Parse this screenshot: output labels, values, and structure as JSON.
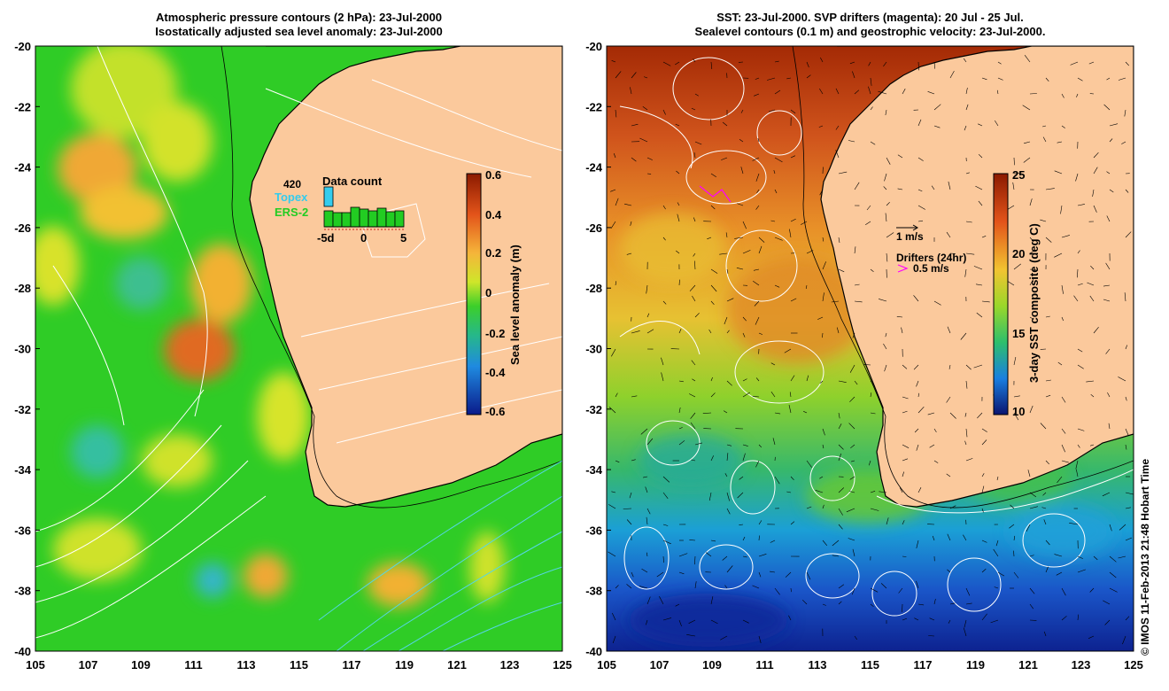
{
  "left_panel": {
    "title_line1": "Atmospheric pressure contours (2 hPa): 23-Jul-2000",
    "title_line2": "Isostatically adjusted sea level anomaly: 23-Jul-2000",
    "colorbar_label": "Sea level anomaly (m)",
    "colorbar_ticks": [
      "0.6",
      "0.4",
      "0.2",
      "0",
      "-0.2",
      "-0.4",
      "-0.6"
    ],
    "inset": {
      "count": "420",
      "title": "Data count",
      "topex_label": "Topex",
      "ers_label": "ERS-2",
      "axis_ticks": [
        "-5d",
        "0",
        "5"
      ],
      "topex_color": "#33ccee",
      "ers_color": "#22cc22"
    }
  },
  "right_panel": {
    "title_line1": "SST: 23-Jul-2000. SVP drifters (magenta): 20 Jul - 25 Jul.",
    "title_line2": "Sealevel contours (0.1 m) and geostrophic velocity: 23-Jul-2000.",
    "colorbar_label": "3-day SST composite (deg C)",
    "colorbar_ticks": [
      "25",
      "20",
      "15",
      "10"
    ],
    "velocity_scale_label": "1 m/s",
    "drifters_label": "Drifters (24hr)",
    "drifter_scale_label": "0.5 m/s",
    "drifter_color": "#ff00ff"
  },
  "axes": {
    "lat_ticks": [
      "-20",
      "-22",
      "-24",
      "-26",
      "-28",
      "-30",
      "-32",
      "-34",
      "-36",
      "-38",
      "-40"
    ],
    "lon_ticks": [
      "105",
      "107",
      "109",
      "111",
      "113",
      "115",
      "117",
      "119",
      "121",
      "123",
      "125"
    ]
  },
  "colors": {
    "land": "#fbc99c",
    "coast": "#000000"
  },
  "credit": "© IMOS 11-Feb-2013 21:48 Hobart Time"
}
